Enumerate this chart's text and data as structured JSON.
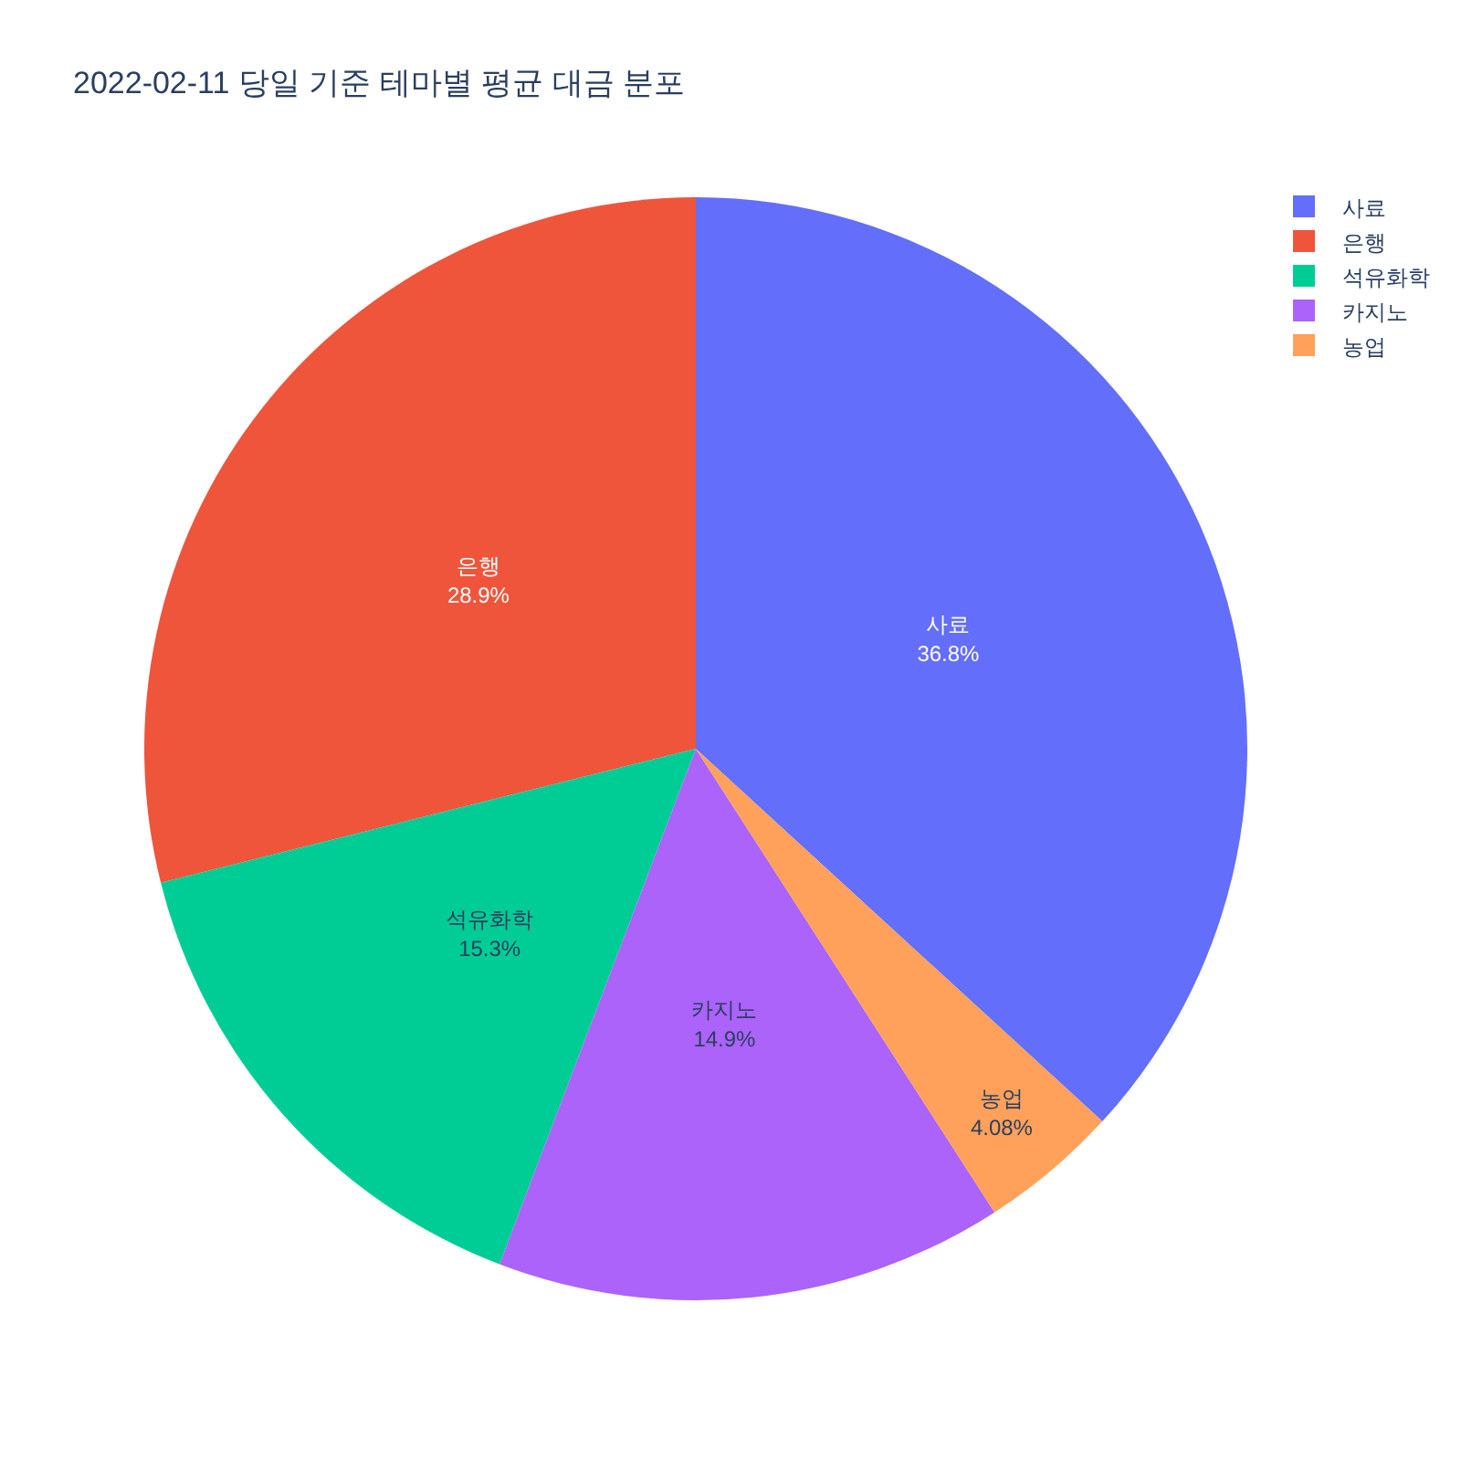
{
  "chart_data": {
    "type": "pie",
    "title": "2022-02-11 당일 기준 테마별 평균 대금 분포",
    "categories": [
      "사료",
      "은행",
      "석유화학",
      "카지노",
      "농업"
    ],
    "values": [
      36.8,
      28.9,
      15.3,
      14.9,
      4.08
    ],
    "value_labels": [
      "36.8%",
      "28.9%",
      "15.3%",
      "14.9%",
      "4.08%"
    ],
    "colors": [
      "#636efa",
      "#ef553b",
      "#00cc96",
      "#ab63fa",
      "#ffa15a"
    ],
    "legend": "top right"
  }
}
